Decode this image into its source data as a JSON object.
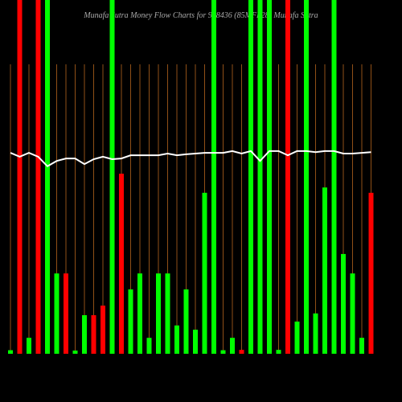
{
  "chart_data": {
    "type": "money-flow",
    "title": "Munafa Sutra Money Flow Charts for 938436 (85MFL28) Munafa Sutra",
    "ylim": [
      0,
      100
    ],
    "grid": true,
    "grid_color": "#b5651d",
    "background": "#000000",
    "series": [
      {
        "type": "bar",
        "values": [
          1,
          100,
          4.5,
          100,
          100,
          22.7,
          22.7,
          0.9,
          10.9,
          10.9,
          13.6,
          100,
          50.9,
          18.2,
          22.7,
          4.5,
          22.7,
          22.7,
          8,
          18.2,
          6.8,
          45.5,
          100,
          1,
          4.5,
          1.1,
          100,
          100,
          100,
          1.1,
          100,
          9.1,
          100,
          11.4,
          47,
          100,
          28.2,
          22.7,
          4.5,
          45.5
        ],
        "colors": [
          "#00ff00",
          "#ff0000",
          "#00ff00",
          "#ff0000",
          "#00ff00",
          "#00ff00",
          "#ff0000",
          "#00ff00",
          "#00ff00",
          "#ff0000",
          "#ff0000",
          "#00ff00",
          "#ff0000",
          "#00ff00",
          "#00ff00",
          "#00ff00",
          "#00ff00",
          "#00ff00",
          "#00ff00",
          "#00ff00",
          "#00ff00",
          "#00ff00",
          "#00ff00",
          "#00ff00",
          "#00ff00",
          "#ff0000",
          "#00ff00",
          "#00ff00",
          "#00ff00",
          "#00ff00",
          "#ff0000",
          "#00ff00",
          "#00ff00",
          "#00ff00",
          "#00ff00",
          "#00ff00",
          "#00ff00",
          "#00ff00",
          "#00ff00",
          "#ff0000"
        ]
      },
      {
        "type": "line",
        "color": "#ffffff",
        "values": [
          56.8,
          55.7,
          56.8,
          55.7,
          53,
          54.5,
          55.2,
          55.2,
          53.6,
          55,
          55.7,
          55,
          55.2,
          56.1,
          56.1,
          56.1,
          56.1,
          56.6,
          56.1,
          56.4,
          56.6,
          56.8,
          56.8,
          56.8,
          57.3,
          56.6,
          57.3,
          54.5,
          57.3,
          57.3,
          56.1,
          57.3,
          57.3,
          57,
          57.3,
          57.3,
          56.6,
          56.6,
          56.8,
          57
        ]
      }
    ]
  }
}
